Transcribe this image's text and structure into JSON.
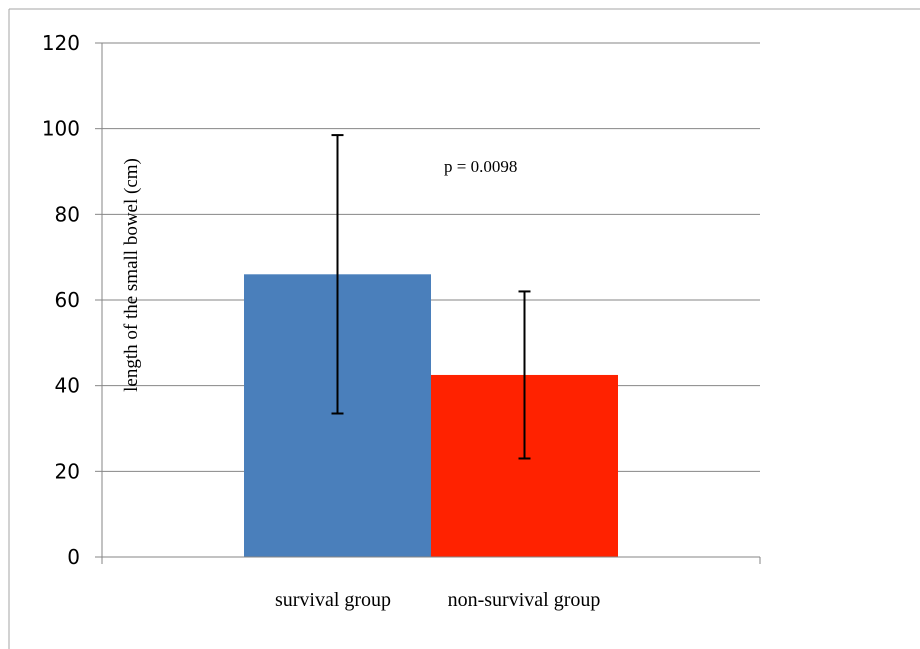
{
  "chart_data": {
    "type": "bar",
    "categories": [
      "survival group",
      "non-survival group"
    ],
    "values": [
      66,
      42.5
    ],
    "error_bars": {
      "upper": [
        98.5,
        62
      ],
      "lower": [
        33.5,
        23
      ]
    },
    "bar_colors": [
      "#4a7fbb",
      "#ff2200"
    ],
    "xlabel": "",
    "ylabel": "length of the small bowel (cm)",
    "ylim": [
      0,
      120
    ],
    "yticks": [
      0,
      20,
      40,
      60,
      80,
      100,
      120
    ],
    "grid": true,
    "legend": "none",
    "annotations": [
      {
        "text": "p = 0.0098"
      }
    ]
  }
}
